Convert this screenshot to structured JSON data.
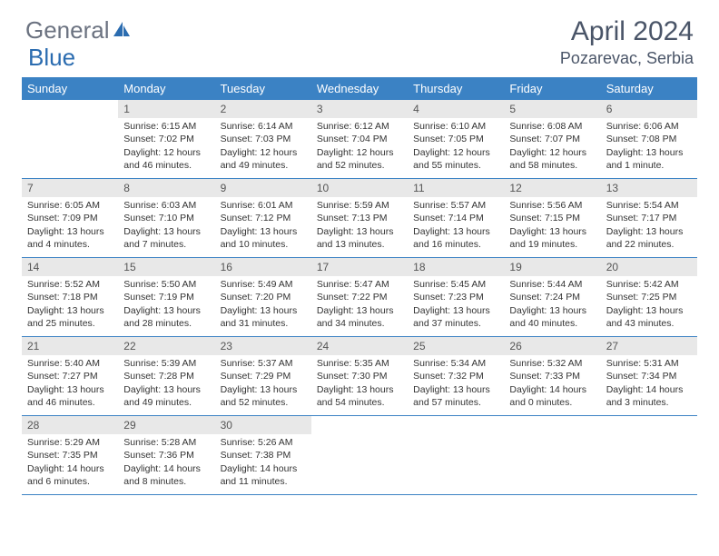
{
  "brand": {
    "part1": "General",
    "part2": "Blue"
  },
  "title": "April 2024",
  "location": "Pozarevac, Serbia",
  "colors": {
    "header_bg": "#3b82c4",
    "header_text": "#ffffff",
    "daynum_bg": "#e8e8e8",
    "border": "#3b82c4",
    "title_color": "#4a5568",
    "logo_gray": "#6b7280",
    "logo_blue": "#2b6cb0"
  },
  "day_names": [
    "Sunday",
    "Monday",
    "Tuesday",
    "Wednesday",
    "Thursday",
    "Friday",
    "Saturday"
  ],
  "weeks": [
    [
      null,
      {
        "n": "1",
        "sr": "Sunrise: 6:15 AM",
        "ss": "Sunset: 7:02 PM",
        "d1": "Daylight: 12 hours",
        "d2": "and 46 minutes."
      },
      {
        "n": "2",
        "sr": "Sunrise: 6:14 AM",
        "ss": "Sunset: 7:03 PM",
        "d1": "Daylight: 12 hours",
        "d2": "and 49 minutes."
      },
      {
        "n": "3",
        "sr": "Sunrise: 6:12 AM",
        "ss": "Sunset: 7:04 PM",
        "d1": "Daylight: 12 hours",
        "d2": "and 52 minutes."
      },
      {
        "n": "4",
        "sr": "Sunrise: 6:10 AM",
        "ss": "Sunset: 7:05 PM",
        "d1": "Daylight: 12 hours",
        "d2": "and 55 minutes."
      },
      {
        "n": "5",
        "sr": "Sunrise: 6:08 AM",
        "ss": "Sunset: 7:07 PM",
        "d1": "Daylight: 12 hours",
        "d2": "and 58 minutes."
      },
      {
        "n": "6",
        "sr": "Sunrise: 6:06 AM",
        "ss": "Sunset: 7:08 PM",
        "d1": "Daylight: 13 hours",
        "d2": "and 1 minute."
      }
    ],
    [
      {
        "n": "7",
        "sr": "Sunrise: 6:05 AM",
        "ss": "Sunset: 7:09 PM",
        "d1": "Daylight: 13 hours",
        "d2": "and 4 minutes."
      },
      {
        "n": "8",
        "sr": "Sunrise: 6:03 AM",
        "ss": "Sunset: 7:10 PM",
        "d1": "Daylight: 13 hours",
        "d2": "and 7 minutes."
      },
      {
        "n": "9",
        "sr": "Sunrise: 6:01 AM",
        "ss": "Sunset: 7:12 PM",
        "d1": "Daylight: 13 hours",
        "d2": "and 10 minutes."
      },
      {
        "n": "10",
        "sr": "Sunrise: 5:59 AM",
        "ss": "Sunset: 7:13 PM",
        "d1": "Daylight: 13 hours",
        "d2": "and 13 minutes."
      },
      {
        "n": "11",
        "sr": "Sunrise: 5:57 AM",
        "ss": "Sunset: 7:14 PM",
        "d1": "Daylight: 13 hours",
        "d2": "and 16 minutes."
      },
      {
        "n": "12",
        "sr": "Sunrise: 5:56 AM",
        "ss": "Sunset: 7:15 PM",
        "d1": "Daylight: 13 hours",
        "d2": "and 19 minutes."
      },
      {
        "n": "13",
        "sr": "Sunrise: 5:54 AM",
        "ss": "Sunset: 7:17 PM",
        "d1": "Daylight: 13 hours",
        "d2": "and 22 minutes."
      }
    ],
    [
      {
        "n": "14",
        "sr": "Sunrise: 5:52 AM",
        "ss": "Sunset: 7:18 PM",
        "d1": "Daylight: 13 hours",
        "d2": "and 25 minutes."
      },
      {
        "n": "15",
        "sr": "Sunrise: 5:50 AM",
        "ss": "Sunset: 7:19 PM",
        "d1": "Daylight: 13 hours",
        "d2": "and 28 minutes."
      },
      {
        "n": "16",
        "sr": "Sunrise: 5:49 AM",
        "ss": "Sunset: 7:20 PM",
        "d1": "Daylight: 13 hours",
        "d2": "and 31 minutes."
      },
      {
        "n": "17",
        "sr": "Sunrise: 5:47 AM",
        "ss": "Sunset: 7:22 PM",
        "d1": "Daylight: 13 hours",
        "d2": "and 34 minutes."
      },
      {
        "n": "18",
        "sr": "Sunrise: 5:45 AM",
        "ss": "Sunset: 7:23 PM",
        "d1": "Daylight: 13 hours",
        "d2": "and 37 minutes."
      },
      {
        "n": "19",
        "sr": "Sunrise: 5:44 AM",
        "ss": "Sunset: 7:24 PM",
        "d1": "Daylight: 13 hours",
        "d2": "and 40 minutes."
      },
      {
        "n": "20",
        "sr": "Sunrise: 5:42 AM",
        "ss": "Sunset: 7:25 PM",
        "d1": "Daylight: 13 hours",
        "d2": "and 43 minutes."
      }
    ],
    [
      {
        "n": "21",
        "sr": "Sunrise: 5:40 AM",
        "ss": "Sunset: 7:27 PM",
        "d1": "Daylight: 13 hours",
        "d2": "and 46 minutes."
      },
      {
        "n": "22",
        "sr": "Sunrise: 5:39 AM",
        "ss": "Sunset: 7:28 PM",
        "d1": "Daylight: 13 hours",
        "d2": "and 49 minutes."
      },
      {
        "n": "23",
        "sr": "Sunrise: 5:37 AM",
        "ss": "Sunset: 7:29 PM",
        "d1": "Daylight: 13 hours",
        "d2": "and 52 minutes."
      },
      {
        "n": "24",
        "sr": "Sunrise: 5:35 AM",
        "ss": "Sunset: 7:30 PM",
        "d1": "Daylight: 13 hours",
        "d2": "and 54 minutes."
      },
      {
        "n": "25",
        "sr": "Sunrise: 5:34 AM",
        "ss": "Sunset: 7:32 PM",
        "d1": "Daylight: 13 hours",
        "d2": "and 57 minutes."
      },
      {
        "n": "26",
        "sr": "Sunrise: 5:32 AM",
        "ss": "Sunset: 7:33 PM",
        "d1": "Daylight: 14 hours",
        "d2": "and 0 minutes."
      },
      {
        "n": "27",
        "sr": "Sunrise: 5:31 AM",
        "ss": "Sunset: 7:34 PM",
        "d1": "Daylight: 14 hours",
        "d2": "and 3 minutes."
      }
    ],
    [
      {
        "n": "28",
        "sr": "Sunrise: 5:29 AM",
        "ss": "Sunset: 7:35 PM",
        "d1": "Daylight: 14 hours",
        "d2": "and 6 minutes."
      },
      {
        "n": "29",
        "sr": "Sunrise: 5:28 AM",
        "ss": "Sunset: 7:36 PM",
        "d1": "Daylight: 14 hours",
        "d2": "and 8 minutes."
      },
      {
        "n": "30",
        "sr": "Sunrise: 5:26 AM",
        "ss": "Sunset: 7:38 PM",
        "d1": "Daylight: 14 hours",
        "d2": "and 11 minutes."
      },
      null,
      null,
      null,
      null
    ]
  ]
}
